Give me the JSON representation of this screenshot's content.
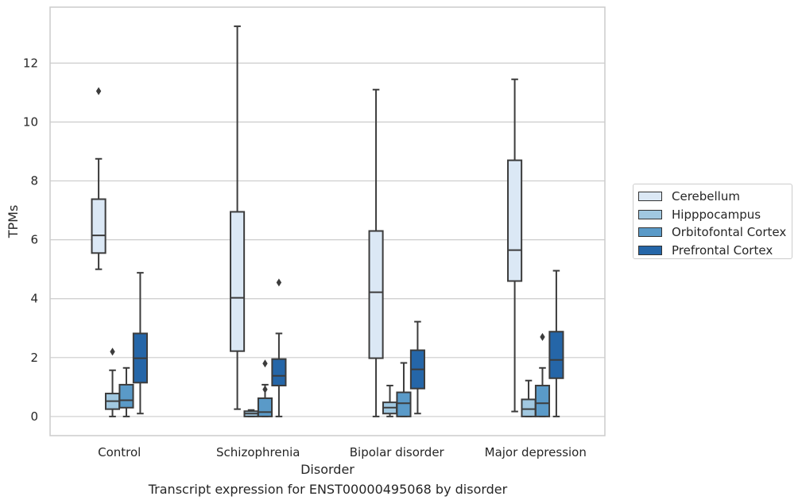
{
  "chart_data": {
    "type": "box",
    "xlabel": "Disorder",
    "ylabel": "TPMs",
    "caption": "Transcript expression for ENST00000495068 by disorder",
    "ylim": [
      -0.65,
      13.9
    ],
    "yticks": [
      0,
      2,
      4,
      6,
      8,
      10,
      12
    ],
    "grid": "horizontal",
    "legend_position": "right",
    "categories": [
      "Control",
      "Schizophrenia",
      "Bipolar disorder",
      "Major depression"
    ],
    "series": [
      {
        "name": "Cerebellum",
        "color": "#dbe8f5",
        "boxes": [
          {
            "whislo": 5.0,
            "q1": 5.55,
            "med": 6.15,
            "q3": 7.38,
            "whishi": 8.75,
            "fliers": [
              11.05
            ]
          },
          {
            "whislo": 0.25,
            "q1": 2.22,
            "med": 4.03,
            "q3": 6.95,
            "whishi": 13.25,
            "fliers": []
          },
          {
            "whislo": 0.0,
            "q1": 1.98,
            "med": 4.22,
            "q3": 6.3,
            "whishi": 11.1,
            "fliers": []
          },
          {
            "whislo": 0.17,
            "q1": 4.6,
            "med": 5.65,
            "q3": 8.7,
            "whishi": 11.45,
            "fliers": []
          }
        ]
      },
      {
        "name": "Hipppocampus",
        "color": "#a1c8e0",
        "boxes": [
          {
            "whislo": 0.0,
            "q1": 0.25,
            "med": 0.52,
            "q3": 0.78,
            "whishi": 1.57,
            "fliers": [
              2.2
            ]
          },
          {
            "whislo": 0.0,
            "q1": 0.0,
            "med": 0.1,
            "q3": 0.18,
            "whishi": 0.22,
            "fliers": []
          },
          {
            "whislo": 0.0,
            "q1": 0.1,
            "med": 0.3,
            "q3": 0.48,
            "whishi": 1.05,
            "fliers": []
          },
          {
            "whislo": 0.0,
            "q1": 0.0,
            "med": 0.25,
            "q3": 0.58,
            "whishi": 1.22,
            "fliers": []
          }
        ]
      },
      {
        "name": "Orbitofontal Cortex",
        "color": "#5a9ac8",
        "boxes": [
          {
            "whislo": 0.0,
            "q1": 0.3,
            "med": 0.55,
            "q3": 1.08,
            "whishi": 1.65,
            "fliers": []
          },
          {
            "whislo": 0.0,
            "q1": 0.0,
            "med": 0.15,
            "q3": 0.62,
            "whishi": 1.08,
            "fliers": [
              1.8,
              0.92
            ]
          },
          {
            "whislo": 0.0,
            "q1": 0.0,
            "med": 0.45,
            "q3": 0.82,
            "whishi": 1.82,
            "fliers": []
          },
          {
            "whislo": 0.0,
            "q1": 0.0,
            "med": 0.45,
            "q3": 1.05,
            "whishi": 1.65,
            "fliers": [
              2.7
            ]
          }
        ]
      },
      {
        "name": "Prefrontal Cortex",
        "color": "#2566a8",
        "boxes": [
          {
            "whislo": 0.1,
            "q1": 1.15,
            "med": 1.98,
            "q3": 2.82,
            "whishi": 4.88,
            "fliers": []
          },
          {
            "whislo": 0.0,
            "q1": 1.05,
            "med": 1.38,
            "q3": 1.95,
            "whishi": 2.82,
            "fliers": [
              4.55
            ]
          },
          {
            "whislo": 0.1,
            "q1": 0.95,
            "med": 1.6,
            "q3": 2.25,
            "whishi": 3.22,
            "fliers": []
          },
          {
            "whislo": 0.0,
            "q1": 1.3,
            "med": 1.92,
            "q3": 2.88,
            "whishi": 4.95,
            "fliers": []
          }
        ]
      }
    ]
  }
}
